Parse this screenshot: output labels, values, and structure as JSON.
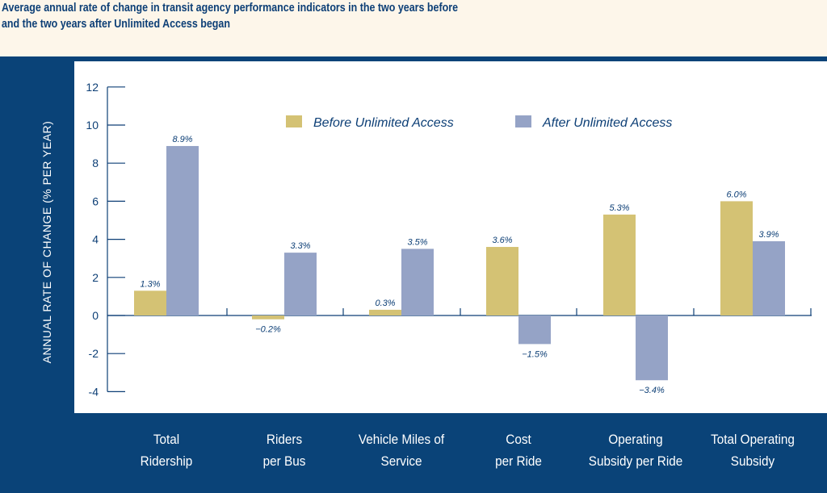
{
  "title_lines": [
    "Average annual rate of change in transit agency performance indicators in the two years before",
    "and the two years after Unlimited Access began"
  ],
  "colors": {
    "before": "#d4c274",
    "after": "#95a3c6",
    "panel": "#0a4378",
    "axis": "#0d3f76"
  },
  "chart_data": {
    "type": "bar",
    "title": "Average annual rate of change in transit agency performance indicators in the two years before and the two years after Unlimited Access began",
    "ylabel": "ANNUAL RATE OF CHANGE (% PER YEAR)",
    "xlabel": "",
    "ylim": [
      -4,
      12
    ],
    "yticks": [
      "12",
      "10",
      "8",
      "6",
      "4",
      "2",
      "0",
      "-2",
      "-4"
    ],
    "categories": [
      [
        "Total",
        "Ridership"
      ],
      [
        "Riders",
        "per Bus"
      ],
      [
        "Vehicle Miles of",
        "Service"
      ],
      [
        "Cost",
        "per Ride"
      ],
      [
        "Operating",
        "Subsidy per Ride"
      ],
      [
        "Total Operating",
        "Subsidy"
      ]
    ],
    "series": [
      {
        "name": "Before Unlimited Access",
        "values": [
          1.3,
          -0.2,
          0.3,
          3.6,
          5.3,
          6.0
        ],
        "labels": [
          "1.3%",
          "−0.2%",
          "0.3%",
          "3.6%",
          "5.3%",
          "6.0%"
        ]
      },
      {
        "name": "After Unlimited Access",
        "values": [
          8.9,
          3.3,
          3.5,
          -1.5,
          -3.4,
          3.9
        ],
        "labels": [
          "8.9%",
          "3.3%",
          "3.5%",
          "−1.5%",
          "−3.4%",
          "3.9%"
        ]
      }
    ],
    "legend_position": "top-center",
    "grid": false
  }
}
